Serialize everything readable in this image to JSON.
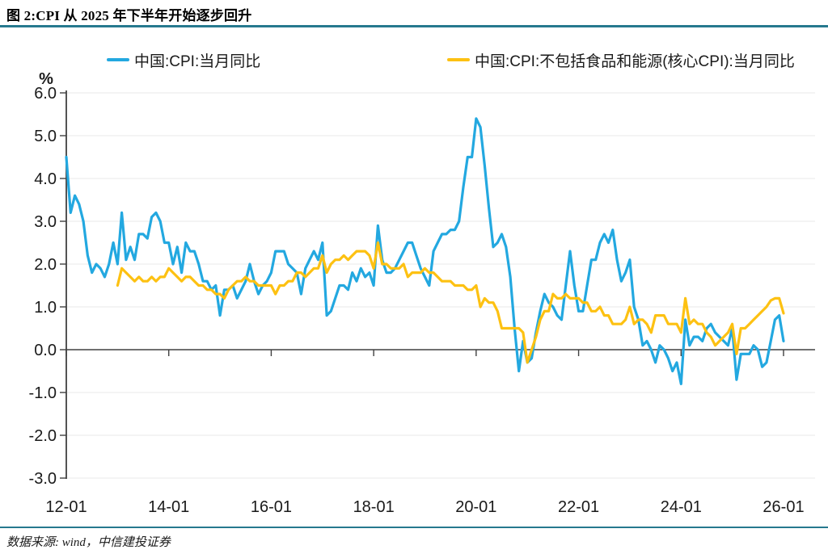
{
  "header": {
    "title": "图 2:CPI 从 2025 年下半年开始逐步回升"
  },
  "footer": {
    "source": "数据来源:  wind，中信建投证券"
  },
  "colors": {
    "divider": "#26798e",
    "axis": "#404040",
    "grid": "#e8e8e8",
    "tick_text": "#1a1a1a"
  },
  "chart_data": {
    "type": "line",
    "title": "CPI 从 2025 年下半年开始逐步回升",
    "xlabel": "",
    "ylabel": "%",
    "ylim": [
      -3.0,
      6.0
    ],
    "grid": true,
    "legend_position": "top",
    "x_start": "2012-01",
    "x_frequency": "monthly",
    "y_ticks": [
      "6.0",
      "5.0",
      "4.0",
      "3.0",
      "2.0",
      "1.0",
      "0.0",
      "-1.0",
      "-2.0",
      "-3.0"
    ],
    "x_ticks": [
      {
        "label": "12-01",
        "month": 0
      },
      {
        "label": "14-01",
        "month": 24
      },
      {
        "label": "16-01",
        "month": 48
      },
      {
        "label": "18-01",
        "month": 72
      },
      {
        "label": "20-01",
        "month": 96
      },
      {
        "label": "22-01",
        "month": 120
      },
      {
        "label": "24-01",
        "month": 144
      },
      {
        "label": "26-01",
        "month": 168
      }
    ],
    "series": [
      {
        "name": "中国:CPI:当月同比",
        "color": "#23a8e0",
        "start_month": 0,
        "start_label": "2012-01",
        "values": [
          4.5,
          3.2,
          3.6,
          3.4,
          3.0,
          2.2,
          1.8,
          2.0,
          1.9,
          1.7,
          2.0,
          2.5,
          2.0,
          3.2,
          2.1,
          2.4,
          2.1,
          2.7,
          2.7,
          2.6,
          3.1,
          3.2,
          3.0,
          2.5,
          2.5,
          2.0,
          2.4,
          1.8,
          2.5,
          2.3,
          2.3,
          2.0,
          1.6,
          1.6,
          1.4,
          1.5,
          0.8,
          1.4,
          1.4,
          1.5,
          1.2,
          1.4,
          1.6,
          2.0,
          1.6,
          1.3,
          1.5,
          1.6,
          1.8,
          2.3,
          2.3,
          2.3,
          2.0,
          1.9,
          1.8,
          1.3,
          1.9,
          2.1,
          2.3,
          2.1,
          2.5,
          0.8,
          0.9,
          1.2,
          1.5,
          1.5,
          1.4,
          1.8,
          1.6,
          1.9,
          1.7,
          1.8,
          1.5,
          2.9,
          2.1,
          1.8,
          1.8,
          1.9,
          2.1,
          2.3,
          2.5,
          2.5,
          2.2,
          1.9,
          1.7,
          1.5,
          2.3,
          2.5,
          2.7,
          2.7,
          2.8,
          2.8,
          3.0,
          3.8,
          4.5,
          4.5,
          5.4,
          5.2,
          4.3,
          3.3,
          2.4,
          2.5,
          2.7,
          2.4,
          1.7,
          0.5,
          -0.5,
          0.2,
          -0.3,
          -0.2,
          0.4,
          0.9,
          1.3,
          1.1,
          1.0,
          0.8,
          0.7,
          1.5,
          2.3,
          1.5,
          0.9,
          0.9,
          1.5,
          2.1,
          2.1,
          2.5,
          2.7,
          2.5,
          2.8,
          2.1,
          1.6,
          1.8,
          2.1,
          1.0,
          0.7,
          0.1,
          0.2,
          0.0,
          -0.3,
          0.1,
          0.0,
          -0.2,
          -0.5,
          -0.3,
          -0.8,
          0.7,
          0.1,
          0.3,
          0.3,
          0.2,
          0.5,
          0.6,
          0.4,
          0.3,
          0.2,
          0.1,
          0.5,
          -0.7,
          -0.1,
          -0.1,
          -0.1,
          0.1,
          0.0,
          -0.4,
          -0.3,
          0.2,
          0.7,
          0.8,
          0.2
        ]
      },
      {
        "name": "中国:CPI:不包括食品和能源(核心CPI):当月同比",
        "color": "#fdc112",
        "start_month": 12,
        "start_label": "2013-01",
        "values": [
          1.5,
          1.9,
          1.8,
          1.7,
          1.6,
          1.7,
          1.6,
          1.6,
          1.7,
          1.6,
          1.7,
          1.7,
          1.9,
          1.8,
          1.7,
          1.6,
          1.7,
          1.7,
          1.6,
          1.5,
          1.5,
          1.4,
          1.4,
          1.3,
          1.3,
          1.2,
          1.4,
          1.5,
          1.6,
          1.6,
          1.7,
          1.6,
          1.6,
          1.5,
          1.5,
          1.5,
          1.5,
          1.3,
          1.5,
          1.5,
          1.6,
          1.6,
          1.8,
          1.8,
          1.7,
          1.8,
          1.9,
          1.9,
          2.2,
          1.8,
          2.0,
          2.1,
          2.1,
          2.2,
          2.1,
          2.2,
          2.3,
          2.3,
          2.3,
          2.2,
          1.9,
          2.5,
          2.0,
          2.0,
          1.9,
          1.9,
          1.9,
          2.0,
          1.7,
          1.8,
          1.8,
          1.8,
          1.9,
          1.8,
          1.8,
          1.7,
          1.6,
          1.6,
          1.6,
          1.5,
          1.5,
          1.5,
          1.4,
          1.4,
          1.5,
          1.0,
          1.2,
          1.1,
          1.1,
          0.9,
          0.5,
          0.5,
          0.5,
          0.5,
          0.5,
          0.4,
          -0.3,
          0.0,
          0.3,
          0.7,
          0.9,
          0.9,
          1.3,
          1.2,
          1.2,
          1.3,
          1.2,
          1.2,
          1.2,
          1.1,
          1.1,
          0.9,
          0.9,
          1.0,
          0.8,
          0.8,
          0.6,
          0.6,
          0.6,
          0.7,
          1.0,
          0.6,
          0.7,
          0.7,
          0.6,
          0.4,
          0.8,
          0.8,
          0.8,
          0.6,
          0.6,
          0.6,
          0.4,
          1.2,
          0.6,
          0.7,
          0.6,
          0.6,
          0.4,
          0.3,
          0.1,
          0.2,
          0.3,
          0.4,
          0.6,
          -0.1,
          0.5,
          0.5,
          0.6,
          0.7,
          0.8,
          0.9,
          1.0,
          1.15,
          1.2,
          1.2,
          0.85
        ]
      }
    ]
  }
}
